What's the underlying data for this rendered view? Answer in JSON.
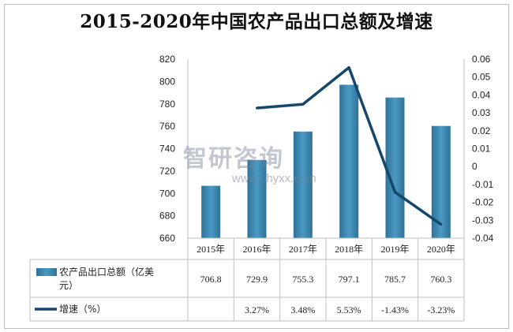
{
  "title": "2015-2020年中国农产品出口总额及增速",
  "watermark": {
    "name": "智研咨询",
    "url": "www.chyxx.com"
  },
  "colors": {
    "bar": "#4a9ac4",
    "bar_dark": "#2f7296",
    "line": "#16476a",
    "grid": "#d9d9d9"
  },
  "chart_data": {
    "type": "bar",
    "categories": [
      "2015年",
      "2016年",
      "2017年",
      "2018年",
      "2019年",
      "2020年"
    ],
    "series": [
      {
        "name": "农产品出口总额（亿美元）",
        "type": "bar",
        "axis": "left",
        "values": [
          706.8,
          729.9,
          755.3,
          797.1,
          785.7,
          760.3
        ],
        "labels": [
          "706.8",
          "729.9",
          "755.3",
          "797.1",
          "785.7",
          "760.3"
        ]
      },
      {
        "name": "增速（%）",
        "type": "line",
        "axis": "right",
        "values": [
          null,
          0.0327,
          0.0348,
          0.0553,
          -0.0143,
          -0.0323
        ],
        "labels": [
          "",
          "3.27%",
          "3.48%",
          "5.53%",
          "-1.43%",
          "-3.23%"
        ]
      }
    ],
    "y_left": {
      "ylim": [
        660,
        820
      ],
      "ticks": [
        "660",
        "680",
        "700",
        "720",
        "740",
        "760",
        "780",
        "800",
        "820"
      ]
    },
    "y_right": {
      "ylim": [
        -0.04,
        0.06
      ],
      "ticks": [
        "-0.04",
        "-0.03",
        "-0.02",
        "-0.01",
        "0",
        "0.01",
        "0.02",
        "0.03",
        "0.04",
        "0.05",
        "0.06"
      ]
    },
    "legend": "data-table"
  }
}
